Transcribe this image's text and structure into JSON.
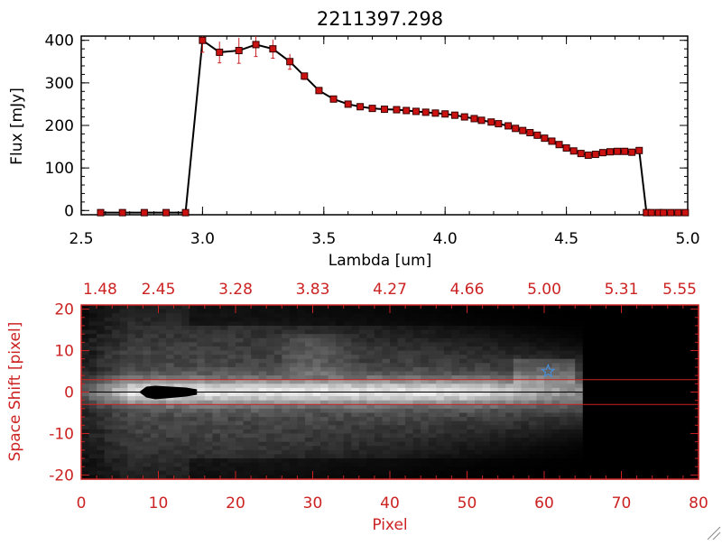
{
  "colors": {
    "axis_black": "#000000",
    "accent_red": "#cc2222",
    "marker_red": "#cc1111",
    "star_blue": "#4a8fd8"
  },
  "chart_data": [
    {
      "type": "line",
      "title": "2211397.298",
      "xlabel": "Lambda [um]",
      "ylabel": "Flux [mJy]",
      "xlim": [
        2.5,
        5.0
      ],
      "ylim": [
        -10,
        410
      ],
      "x_ticks": [
        "2.5",
        "3.0",
        "3.5",
        "4.0",
        "4.5",
        "5.0"
      ],
      "y_ticks": [
        "0",
        "100",
        "200",
        "300",
        "400"
      ],
      "grid": false,
      "series": [
        {
          "x": [
            2.58,
            2.67,
            2.76,
            2.85,
            2.93,
            3.0,
            3.07,
            3.15,
            3.22,
            3.29,
            3.36,
            3.42,
            3.48,
            3.54,
            3.6,
            3.65,
            3.7,
            3.75,
            3.8,
            3.84,
            3.88,
            3.92,
            3.96,
            4.0,
            4.04,
            4.08,
            4.12,
            4.15,
            4.19,
            4.22,
            4.26,
            4.29,
            4.32,
            4.35,
            4.38,
            4.41,
            4.44,
            4.47,
            4.5,
            4.53,
            4.56,
            4.59,
            4.62,
            4.65,
            4.68,
            4.71,
            4.74,
            4.77,
            4.8,
            4.83,
            4.85,
            4.88,
            4.9,
            4.93,
            4.96,
            4.99
          ],
          "y": [
            -5,
            -5,
            -5,
            -5,
            -5,
            400,
            372,
            376,
            390,
            380,
            350,
            316,
            282,
            262,
            250,
            244,
            240,
            238,
            237,
            235,
            233,
            231,
            229,
            227,
            224,
            220,
            216,
            212,
            208,
            204,
            199,
            193,
            188,
            183,
            177,
            170,
            163,
            155,
            147,
            140,
            134,
            130,
            132,
            136,
            138,
            139,
            139,
            137,
            141,
            -5,
            -5,
            -5,
            -5,
            -5,
            -5,
            -5
          ],
          "error": [
            0,
            0,
            0,
            0,
            0,
            28,
            25,
            30,
            28,
            22,
            18,
            8,
            4,
            0,
            0,
            0,
            0,
            0,
            0,
            0,
            0,
            0,
            0,
            0,
            0,
            0,
            0,
            0,
            0,
            0,
            0,
            0,
            0,
            0,
            0,
            0,
            0,
            0,
            0,
            0,
            0,
            0,
            0,
            0,
            0,
            0,
            0,
            0,
            0,
            0,
            0,
            0,
            0,
            0,
            0,
            0
          ]
        }
      ]
    },
    {
      "type": "heatmap",
      "xlabel": "Pixel",
      "ylabel": "Space Shift [pixel]",
      "xlim": [
        0,
        80
      ],
      "ylim": [
        -21,
        21
      ],
      "x_ticks": [
        "0",
        "10",
        "20",
        "30",
        "40",
        "50",
        "60",
        "70",
        "80"
      ],
      "y_ticks": [
        "-20",
        "-10",
        "0",
        "10",
        "20"
      ],
      "top_axis_ticks": [
        "1.48",
        "2.45",
        "3.28",
        "3.83",
        "4.27",
        "4.66",
        "5.00",
        "5.31",
        "5.55"
      ],
      "extraction_lines_y": [
        3,
        -3
      ],
      "marker": {
        "symbol": "star",
        "x": 60.5,
        "y": 5
      },
      "mask_blob": {
        "x_range": [
          7.5,
          15
        ],
        "y": 0
      },
      "signal_cutoff_x": 65,
      "colormap": "grayscale"
    }
  ]
}
